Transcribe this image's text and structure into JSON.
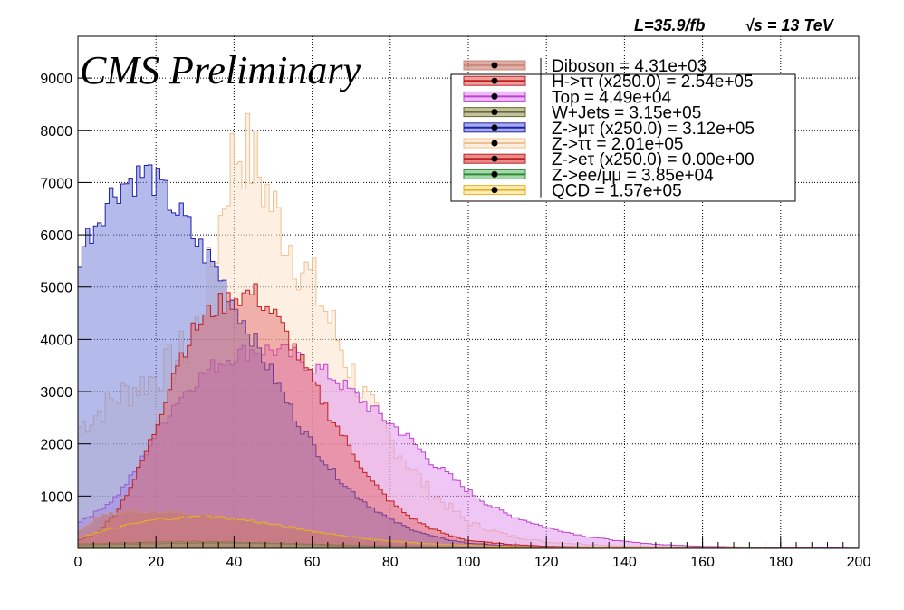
{
  "header": {
    "cms_label": "CMS Preliminary",
    "lumi_label": "L=35.9/fb",
    "energy_label": "√s = 13 TeV"
  },
  "chart_data": {
    "type": "area",
    "title": "",
    "xlabel": "",
    "ylabel": "",
    "xlim": [
      0,
      200
    ],
    "ylim": [
      0,
      9800
    ],
    "xticks": [
      0,
      20,
      40,
      60,
      80,
      100,
      120,
      140,
      160,
      180,
      200
    ],
    "yticks": [
      1000,
      2000,
      3000,
      4000,
      5000,
      6000,
      7000,
      8000,
      9000
    ],
    "grid": true,
    "legend_position": "top-right",
    "series": [
      {
        "name": "Diboson = 4.31e+03",
        "color": "#c88a7a",
        "fill": "#c8776a",
        "opacity": 0.55,
        "x": [
          0,
          5,
          10,
          15,
          20,
          25,
          30,
          35,
          40,
          45,
          50,
          55,
          60,
          65,
          70,
          75,
          80,
          85,
          90,
          95,
          100,
          110,
          120,
          140,
          160,
          180,
          200
        ],
        "y": [
          300,
          600,
          680,
          700,
          700,
          690,
          660,
          620,
          560,
          500,
          440,
          380,
          320,
          260,
          210,
          160,
          120,
          90,
          60,
          40,
          30,
          15,
          8,
          3,
          1,
          0,
          0
        ]
      },
      {
        "name": "H->ττ (x250.0) = 2.54e+05",
        "color": "#c02020",
        "fill": "#e06060",
        "opacity": 0.45,
        "x": [
          0,
          5,
          10,
          15,
          20,
          25,
          30,
          35,
          40,
          45,
          50,
          55,
          60,
          65,
          70,
          75,
          80,
          85,
          90,
          95,
          100,
          110,
          120,
          140,
          160,
          180,
          200
        ],
        "y": [
          150,
          300,
          700,
          1400,
          2300,
          3500,
          4200,
          4600,
          4800,
          4900,
          4500,
          3900,
          3200,
          2500,
          1900,
          1300,
          900,
          600,
          400,
          250,
          150,
          80,
          40,
          15,
          5,
          2,
          0
        ]
      },
      {
        "name": "Top = 4.49e+04",
        "color": "#c040d0",
        "fill": "#e090f0",
        "opacity": 0.5,
        "x": [
          0,
          5,
          10,
          15,
          20,
          25,
          30,
          35,
          40,
          45,
          50,
          55,
          60,
          65,
          70,
          75,
          80,
          85,
          90,
          95,
          100,
          105,
          110,
          120,
          130,
          140,
          150,
          160,
          180,
          200
        ],
        "y": [
          500,
          700,
          1000,
          1500,
          2200,
          2800,
          3200,
          3500,
          3700,
          3800,
          3800,
          3700,
          3500,
          3300,
          3000,
          2700,
          2400,
          2100,
          1700,
          1400,
          1100,
          850,
          650,
          400,
          230,
          130,
          70,
          40,
          15,
          5
        ]
      },
      {
        "name": "W+Jets = 3.15e+05",
        "color": "#6a6a30",
        "fill": "#9a9a60",
        "opacity": 0.5,
        "x": [
          0,
          10,
          20,
          30,
          40,
          50,
          60,
          70,
          80,
          90,
          100,
          120,
          140,
          160,
          180,
          200
        ],
        "y": [
          80,
          100,
          120,
          130,
          120,
          100,
          80,
          60,
          40,
          30,
          20,
          10,
          5,
          3,
          1,
          0
        ]
      },
      {
        "name": "Z->μτ (x250.0) = 3.12e+05",
        "color": "#2020b0",
        "fill": "#6a78d8",
        "opacity": 0.5,
        "x": [
          0,
          2,
          5,
          8,
          10,
          12,
          15,
          18,
          20,
          22,
          25,
          28,
          30,
          32,
          35,
          38,
          40,
          45,
          50,
          55,
          60,
          65,
          70,
          75,
          80,
          85,
          90,
          95,
          100,
          110,
          120,
          140,
          160,
          180,
          200
        ],
        "y": [
          5500,
          5900,
          6300,
          6700,
          6900,
          7000,
          7100,
          7200,
          7000,
          6800,
          6500,
          6200,
          5900,
          5700,
          5400,
          5000,
          4700,
          4000,
          3300,
          2600,
          2000,
          1500,
          1100,
          800,
          550,
          380,
          250,
          160,
          100,
          50,
          25,
          10,
          4,
          1,
          0
        ]
      },
      {
        "name": "Z->ττ = 2.01e+05",
        "color": "#f0c090",
        "fill": "#fbe3cc",
        "opacity": 0.55,
        "x": [
          0,
          5,
          10,
          15,
          20,
          25,
          30,
          35,
          38,
          40,
          42,
          45,
          48,
          50,
          55,
          58,
          60,
          65,
          70,
          75,
          80,
          85,
          90,
          95,
          100,
          110,
          120,
          140,
          160,
          180,
          200
        ],
        "y": [
          2300,
          2600,
          2900,
          3100,
          3300,
          3600,
          4100,
          5600,
          7000,
          7600,
          7700,
          7400,
          6900,
          6500,
          5800,
          5300,
          5100,
          4300,
          3400,
          2700,
          2100,
          1600,
          1100,
          800,
          500,
          250,
          120,
          40,
          15,
          5,
          0
        ]
      },
      {
        "name": "Z->eτ (x250.0) = 0.00e+00",
        "color": "#c02020",
        "fill": "#d84040",
        "opacity": 0.0,
        "x": [
          0,
          200
        ],
        "y": [
          0,
          0
        ]
      },
      {
        "name": "Z->ee/μμ = 3.85e+04",
        "color": "#2e8b3a",
        "fill": "#6abf70",
        "opacity": 0.5,
        "x": [
          0,
          10,
          20,
          30,
          40,
          50,
          60,
          70,
          80,
          90,
          100,
          120,
          140,
          160,
          180,
          200
        ],
        "y": [
          60,
          80,
          90,
          100,
          100,
          90,
          70,
          50,
          35,
          20,
          12,
          5,
          2,
          1,
          0,
          0
        ]
      },
      {
        "name": "QCD = 1.57e+05",
        "color": "#e8b020",
        "fill": "#f8e080",
        "opacity": 0.0,
        "x": [
          0,
          5,
          10,
          15,
          20,
          25,
          30,
          35,
          40,
          45,
          50,
          55,
          60,
          70,
          80,
          90,
          100,
          110,
          120,
          140,
          160,
          180,
          200
        ],
        "y": [
          200,
          300,
          400,
          480,
          550,
          580,
          600,
          600,
          570,
          520,
          460,
          400,
          330,
          220,
          140,
          90,
          60,
          40,
          25,
          12,
          5,
          2,
          0
        ]
      }
    ]
  }
}
